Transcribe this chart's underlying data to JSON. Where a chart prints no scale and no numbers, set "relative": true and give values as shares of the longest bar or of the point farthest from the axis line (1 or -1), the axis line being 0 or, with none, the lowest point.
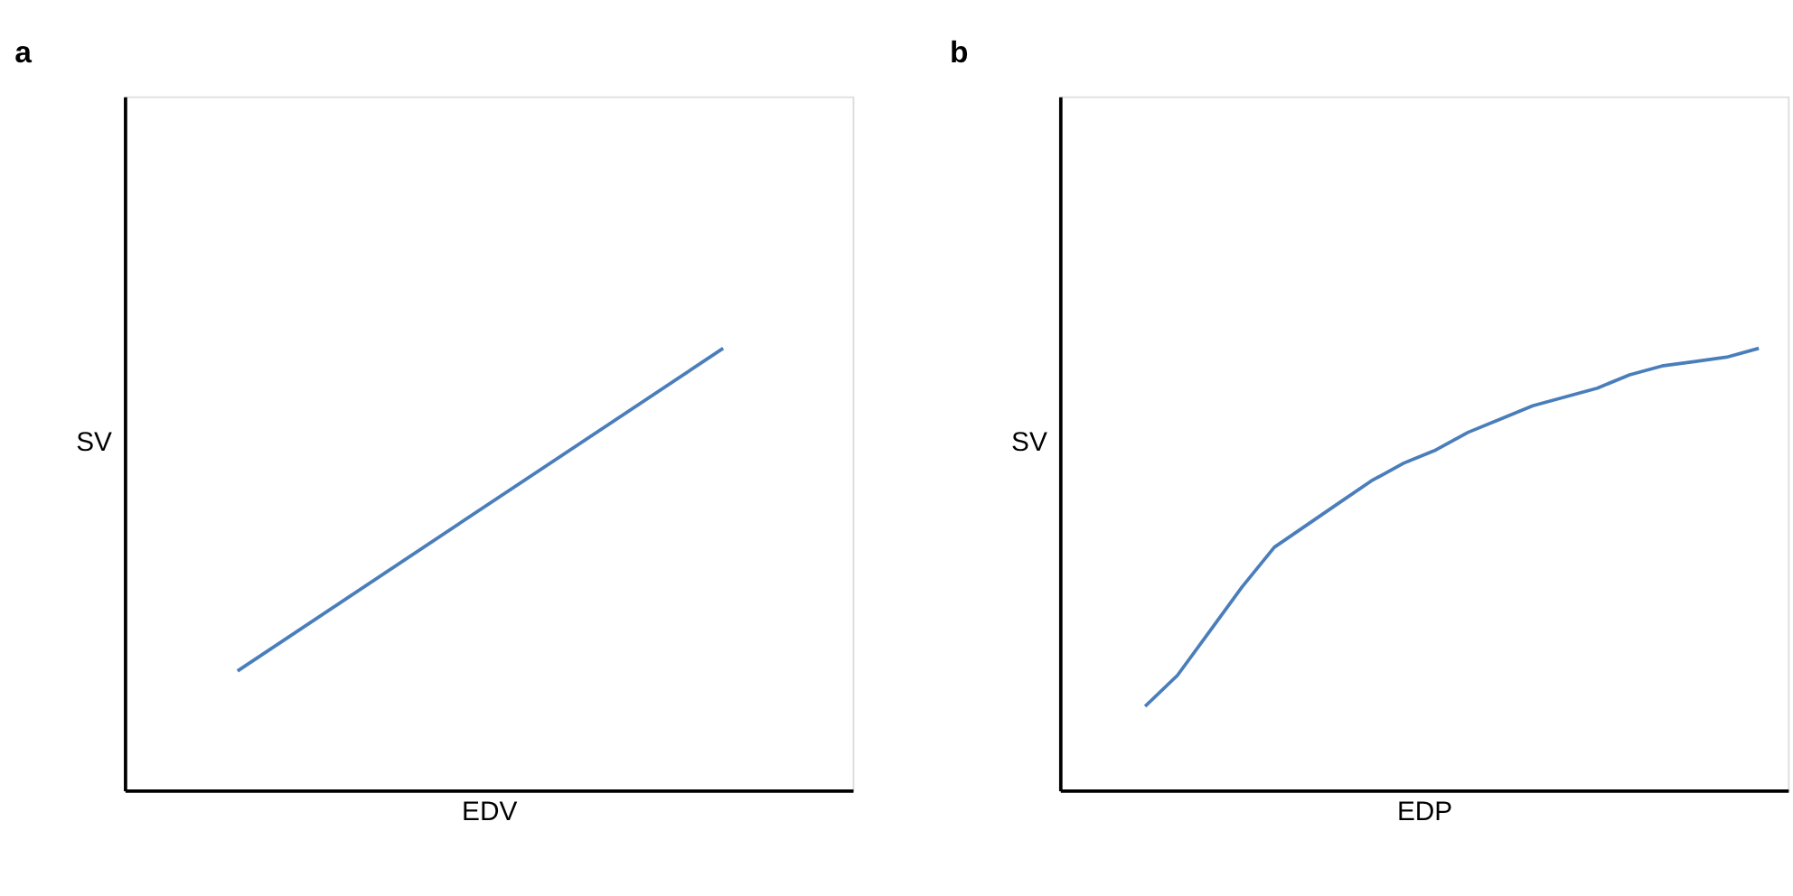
{
  "chart_data": [
    {
      "type": "line",
      "title": "a",
      "xlabel": "EDV",
      "ylabel": "SV",
      "relative": true,
      "grid": false,
      "marker": "none",
      "line_style": "solid",
      "categories": [
        null,
        null
      ],
      "series": [
        {
          "color": "#4a7ebb",
          "values": [
            0.27,
            1
          ]
        }
      ]
    },
    {
      "type": "line",
      "title": "b",
      "xlabel": "EDP",
      "ylabel": "SV",
      "relative": true,
      "grid": false,
      "marker": "none",
      "line_style": "solid",
      "categories": [
        null,
        null,
        null,
        null,
        null,
        null,
        null,
        null,
        null,
        null,
        null,
        null,
        null,
        null,
        null,
        null,
        null,
        null,
        null,
        null
      ],
      "series": [
        {
          "color": "#4a7ebb",
          "values": [
            0.19,
            0.26,
            0.36,
            0.46,
            0.55,
            0.6,
            0.65,
            0.7,
            0.74,
            0.77,
            0.81,
            0.84,
            0.87,
            0.89,
            0.91,
            0.94,
            0.96,
            0.97,
            0.98,
            1
          ]
        }
      ]
    }
  ]
}
